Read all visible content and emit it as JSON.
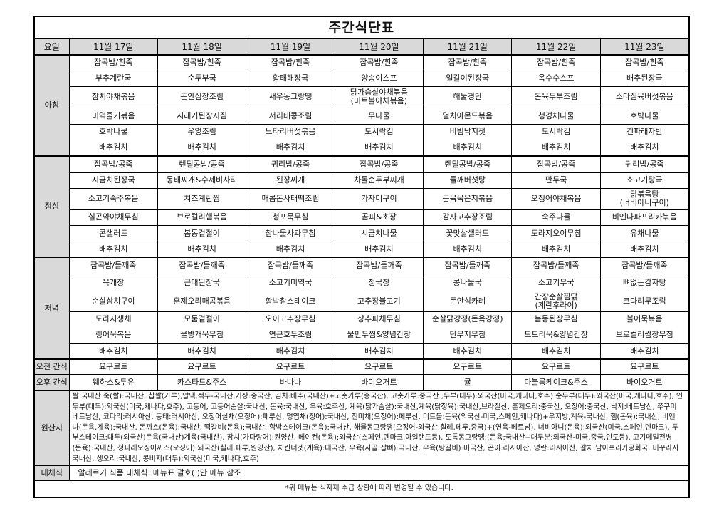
{
  "title": "주간식단표",
  "header_label": "요일",
  "days": [
    "11월 17일",
    "11월 18일",
    "11월 19일",
    "11월 20일",
    "11월 21일",
    "11월 22일",
    "11월 23일"
  ],
  "meals": [
    {
      "label": "아침",
      "items": [
        [
          "잡곡밥/흰죽",
          "부추계란국",
          "참치야채볶음",
          "미역줄기볶음",
          "호박나물",
          "배추김치"
        ],
        [
          "잡곡밥/흰죽",
          "순두부국",
          "돈안심장조림",
          "시래기된장지짐",
          "우엉조림",
          "배추김치"
        ],
        [
          "잡곡밥/흰죽",
          "황태해장국",
          "새우동그랑땡",
          "서리태콩조림",
          "느타리버섯볶음",
          "배추김치"
        ],
        [
          "잡곡밥/흰죽",
          "양송이스프",
          "닭가슴살야채볶음\n(미트볼야채볶음)",
          "무나물",
          "도시락김",
          "배추김치"
        ],
        [
          "잡곡밥/흰죽",
          "얼갈이된장국",
          "해물경단",
          "멸치아몬드볶음",
          "비빔낙지젓",
          "배추김치"
        ],
        [
          "잡곡밥/흰죽",
          "옥수수스프",
          "돈육두부조림",
          "청경채나물",
          "도시락김",
          "배추김치"
        ],
        [
          "잡곡밥/흰죽",
          "배추된장국",
          "소다짐육버섯볶음",
          "호박나물",
          "건파래자반",
          "배추김치"
        ]
      ]
    },
    {
      "label": "점심",
      "items": [
        [
          "잡곡밥/콩죽",
          "시금치된장국",
          "소고기숙주볶음",
          "실곤약야채무침",
          "콘샐러드",
          "배추김치"
        ],
        [
          "렌틸콩밥/콩죽",
          "동태찌개&수제비사리",
          "치즈계란찜",
          "브로컬리햄볶음",
          "봄동겉절이",
          "배추김치"
        ],
        [
          "귀리밥/콩죽",
          "된장찌개",
          "매콤돈사태떡조림",
          "청포묵무침",
          "참나물사과무침",
          "배추김치"
        ],
        [
          "잡곡밥/콩죽",
          "차돌순두부찌개",
          "가자미구이",
          "곰피&초장",
          "시금치나물",
          "배추김치"
        ],
        [
          "렌틸콩밥/콩죽",
          "들깨버섯탕",
          "돈육묵은지볶음",
          "감자고추장조림",
          "꽃맛살샐러드",
          "배추김치"
        ],
        [
          "잡곡밥/콩죽",
          "만두국",
          "오징어야채볶음",
          "숙주나물",
          "도라지오이무침",
          "배추김치"
        ],
        [
          "귀리밥/콩죽",
          "소고기탕국",
          "닭볶음탕\n(너비아니구이)",
          "비엔나파프리카볶음",
          "유채나물",
          "배추김치"
        ]
      ]
    },
    {
      "label": "저녁",
      "items": [
        [
          "잡곡밥/들깨죽",
          "육개장",
          "순살삼치구이",
          "도라지생채",
          "링어묵볶음",
          "배추김치"
        ],
        [
          "잡곡밥/들깨죽",
          "근대된장국",
          "훈제오리매콤볶음",
          "모둠겉절이",
          "울방개묵무침",
          "배추김치"
        ],
        [
          "잡곡밥/들깨죽",
          "소고기미역국",
          "함박참스테이크",
          "오이고추장무침",
          "연근호두조림",
          "배추김치"
        ],
        [
          "잡곡밥/들깨죽",
          "청국장",
          "고추장불고기",
          "상추파채무침",
          "물만두찜&양념간장",
          "배추김치"
        ],
        [
          "잡곡밥/들깨죽",
          "콩나물국",
          "돈안심카레",
          "순살닭강정(돈육강정)",
          "단무지무침",
          "배추김치"
        ],
        [
          "잡곡밥/들깨죽",
          "소고기무국",
          "간장순살찜닭\n(계란후라이)",
          "봄동된장무침",
          "도토리묵&양념간장",
          "배추김치"
        ],
        [
          "잡곡밥/들깨죽",
          "뼈없는감자탕",
          "코다리무조림",
          "볼어묵볶음",
          "브로컬리쌈장무침",
          "배추김치"
        ]
      ]
    }
  ],
  "snack_am": {
    "label": "오전 간식",
    "items": [
      "요구르트",
      "요구르트",
      "요구르트",
      "요구르트",
      "요구르트",
      "요구르트",
      "요구르트"
    ]
  },
  "snack_pm": {
    "label": "오후 간식",
    "items": [
      "웨하스&두유",
      "카스타드&주스",
      "바나나",
      "바이오거트",
      "귤",
      "마블롱케이크&주스",
      "바이오거트"
    ]
  },
  "origin": {
    "label": "원산지",
    "lines": [
      "쌀:국내산 죽(쌀):국내산, 찹쌀(가루),압맥,적두-국내산,기장:중국산, 김치:배추(국내산)+고춧가루(중국산), 고춧가루:중국산 ,두부(대두):외국산(미국,캐나다,호주) 순두부(대두):외국산(미국,캐나다,호주), 인",
      "두부(대두):외국산(미국,캐나다,호주), 고등어, 고등어순살:국내산, 돈육:국내산, 우육:호주산, 계육(닭가슴살):국내산,계육(닭정육):국내산,브라질산, 훈제오리:중국산, 오징어:중국산, 낙지:베트남산, 쭈꾸미",
      "베트남산, 코다리:러시아산, 동태:러시아산, 오징어실채(오징어):페루산, 명엽채(청어):국내산, 진미채(오징어):페루산, 미트볼:돈육(외국산-미국,스페인,캐나다)+우지방,계육-국내산, 햄(돈육):국내산, 비엔",
      "나(돈육,계육):국내산, 돈까스(돈육):국내산, 떡갈비(돈육):국내산, 함박스테이크(돈육):국내산, 해물동그랑땡(오징어-외국산:칠레,페루,중국)+(연육-베트남), 너비아니(돈육):외국산(미국,스페인,덴마크), 두",
      "부스테이크:대두(외국산)돈육(국내산)계육(국내산), 참치(가다랑어):원양산, 베이컨(돈육):외국산(스페인,덴마크,아일랜드등), 도톰동그랑땡:(돈육:국내산+대두분:외국산-미국,중국,인도등), 고기메밀전병",
      "(돈육):국내산, 청파래오징어까스(오징어):외국산(칠레,페루,원양산), 치킨너겟(계육):태국산, 우육(사골,잡뼈):국내산, 우육(탕갈비):미국산, 곤이:러시아산, 명란:러시아산, 갈치:남아프리카공화국, 미꾸라지",
      "국내산, 생오리:국내산, 콩비지(대두):외국산(미국,캐나다,호주)"
    ]
  },
  "substitute": {
    "label": "대체식",
    "text": "알레르기 식품 대체식: 메뉴표 괄호( )안 메뉴 참조"
  },
  "footnote": "*위 메뉴는 식자재 수급 상황에 따라 변경될 수 있습니다."
}
